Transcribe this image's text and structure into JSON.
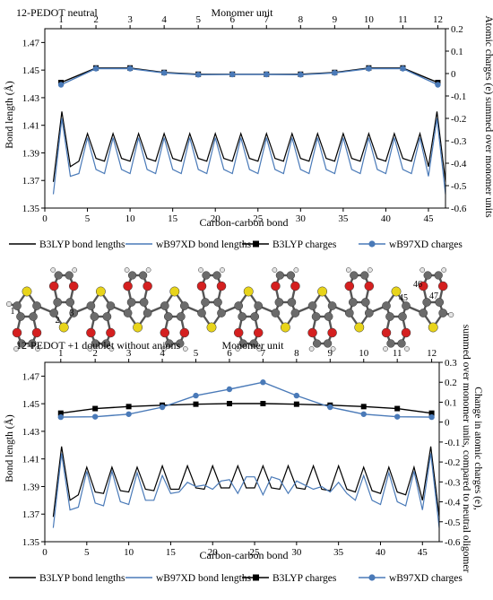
{
  "chart_data": [
    {
      "type": "line",
      "title": "12-PEDOT neutral",
      "x2label": "Monomer unit",
      "xlabel": "Carbon-carbon bond",
      "ylabel": "Bond length (Å)",
      "y2label": "Atomic charges (e) summed over monomer units",
      "xlim": [
        0,
        47
      ],
      "ylim": [
        1.35,
        1.48
      ],
      "y2lim": [
        -0.6,
        0.2
      ],
      "x_ticks": [
        0,
        5,
        10,
        15,
        20,
        25,
        30,
        35,
        40,
        45
      ],
      "y_ticks": [
        1.35,
        1.37,
        1.39,
        1.41,
        1.43,
        1.45,
        1.47
      ],
      "y_tick_labels": [
        "1.35",
        "1.37",
        "1.39",
        "1.41",
        "1.43",
        "1.45",
        "1.47"
      ],
      "y2_ticks": [
        -0.6,
        -0.5,
        -0.4,
        -0.3,
        -0.2,
        -0.1,
        0,
        0.1,
        0.2
      ],
      "y2_tick_labels": [
        "-0.6",
        "-0.5",
        "-0.4",
        "-0.3",
        "-0.2",
        "-0.1",
        "0",
        "0.1",
        "0.2"
      ],
      "monomer_ticks": [
        1,
        2,
        3,
        4,
        5,
        6,
        7,
        8,
        9,
        10,
        11,
        12
      ],
      "monomer_x": [
        1.9,
        6,
        10,
        14,
        18,
        22,
        26,
        30,
        34,
        38,
        42,
        46.1
      ],
      "series": [
        {
          "name": "B3LYP bond lengths",
          "axis": "left",
          "color": "#000000",
          "x": [
            1,
            2,
            3,
            4,
            5,
            6,
            7,
            8,
            9,
            10,
            11,
            12,
            13,
            14,
            15,
            16,
            17,
            18,
            19,
            20,
            21,
            22,
            23,
            24,
            25,
            26,
            27,
            28,
            29,
            30,
            31,
            32,
            33,
            34,
            35,
            36,
            37,
            38,
            39,
            40,
            41,
            42,
            43,
            44,
            45,
            46,
            47
          ],
          "values": [
            1.369,
            1.42,
            1.38,
            1.384,
            1.404,
            1.386,
            1.384,
            1.404,
            1.386,
            1.384,
            1.404,
            1.386,
            1.384,
            1.404,
            1.386,
            1.384,
            1.404,
            1.386,
            1.384,
            1.404,
            1.386,
            1.384,
            1.404,
            1.386,
            1.384,
            1.404,
            1.386,
            1.384,
            1.404,
            1.386,
            1.384,
            1.404,
            1.386,
            1.384,
            1.404,
            1.386,
            1.384,
            1.404,
            1.386,
            1.384,
            1.404,
            1.386,
            1.384,
            1.404,
            1.38,
            1.42,
            1.369
          ]
        },
        {
          "name": "wB97XD bond lengths",
          "axis": "left",
          "color": "#4a7ab8",
          "x": [
            1,
            2,
            3,
            4,
            5,
            6,
            7,
            8,
            9,
            10,
            11,
            12,
            13,
            14,
            15,
            16,
            17,
            18,
            19,
            20,
            21,
            22,
            23,
            24,
            25,
            26,
            27,
            28,
            29,
            30,
            31,
            32,
            33,
            34,
            35,
            36,
            37,
            38,
            39,
            40,
            41,
            42,
            43,
            44,
            45,
            46,
            47
          ],
          "values": [
            1.36,
            1.415,
            1.373,
            1.375,
            1.401,
            1.378,
            1.375,
            1.401,
            1.378,
            1.375,
            1.401,
            1.378,
            1.375,
            1.401,
            1.378,
            1.375,
            1.401,
            1.378,
            1.375,
            1.401,
            1.378,
            1.375,
            1.401,
            1.378,
            1.375,
            1.401,
            1.378,
            1.375,
            1.401,
            1.378,
            1.375,
            1.401,
            1.378,
            1.375,
            1.401,
            1.378,
            1.375,
            1.401,
            1.378,
            1.375,
            1.401,
            1.378,
            1.375,
            1.401,
            1.373,
            1.415,
            1.36
          ]
        },
        {
          "name": "B3LYP charges",
          "axis": "right",
          "color": "#000000",
          "marker": "square",
          "x": [
            1.9,
            6,
            10,
            14,
            18,
            22,
            26,
            30,
            34,
            38,
            42,
            46.1
          ],
          "values": [
            -0.04,
            0.025,
            0.025,
            0.005,
            -0.003,
            -0.003,
            -0.003,
            -0.003,
            0.005,
            0.025,
            0.025,
            -0.04
          ]
        },
        {
          "name": "wB97XD charges",
          "axis": "right",
          "color": "#4a7ab8",
          "marker": "circle",
          "x": [
            1.9,
            6,
            10,
            14,
            18,
            22,
            26,
            30,
            34,
            38,
            42,
            46.1
          ],
          "values": [
            -0.05,
            0.022,
            0.022,
            0.003,
            -0.005,
            -0.004,
            -0.004,
            -0.005,
            0.003,
            0.022,
            0.022,
            -0.05
          ]
        }
      ]
    },
    {
      "type": "line",
      "title": "12-PEDOT +1 doublet without anions",
      "x2label": "Monomer unit",
      "xlabel": "Carbon-carbon bond",
      "ylabel": "Bond length (Å)",
      "y2label": "Change in atomic charges (e), summed over monomer units, compared to neutral oligomer",
      "xlim": [
        0,
        47
      ],
      "ylim": [
        1.35,
        1.48
      ],
      "y2lim": [
        -0.6,
        0.3
      ],
      "x_ticks": [
        0,
        5,
        10,
        15,
        20,
        25,
        30,
        35,
        40,
        45
      ],
      "y_ticks": [
        1.35,
        1.37,
        1.39,
        1.41,
        1.43,
        1.45,
        1.47
      ],
      "y_tick_labels": [
        "1.35",
        "1.37",
        "1.39",
        "1.41",
        "1.43",
        "1.45",
        "1.47"
      ],
      "y2_ticks": [
        -0.6,
        -0.5,
        -0.4,
        -0.3,
        -0.2,
        -0.1,
        0,
        0.1,
        0.2,
        0.3
      ],
      "y2_tick_labels": [
        "-0.6",
        "-0.5",
        "-0.4",
        "-0.3",
        "-0.2",
        "-0.1",
        "0",
        "0.1",
        "0.2",
        "0.3"
      ],
      "monomer_ticks": [
        1,
        2,
        3,
        4,
        5,
        6,
        7,
        8,
        9,
        10,
        11,
        12
      ],
      "monomer_x": [
        1.9,
        6,
        10,
        14,
        18,
        22,
        26,
        30,
        34,
        38,
        42,
        46.1
      ],
      "series": [
        {
          "name": "B3LYP bond lengths",
          "axis": "left",
          "color": "#000000",
          "x": [
            1,
            2,
            3,
            4,
            5,
            6,
            7,
            8,
            9,
            10,
            11,
            12,
            13,
            14,
            15,
            16,
            17,
            18,
            19,
            20,
            21,
            22,
            23,
            24,
            25,
            26,
            27,
            28,
            29,
            30,
            31,
            32,
            33,
            34,
            35,
            36,
            37,
            38,
            39,
            40,
            41,
            42,
            43,
            44,
            45,
            46,
            47
          ],
          "values": [
            1.368,
            1.419,
            1.38,
            1.384,
            1.404,
            1.386,
            1.385,
            1.404,
            1.387,
            1.386,
            1.404,
            1.388,
            1.387,
            1.405,
            1.388,
            1.388,
            1.405,
            1.389,
            1.388,
            1.405,
            1.389,
            1.389,
            1.405,
            1.389,
            1.389,
            1.405,
            1.389,
            1.388,
            1.405,
            1.389,
            1.388,
            1.405,
            1.388,
            1.387,
            1.405,
            1.388,
            1.386,
            1.404,
            1.387,
            1.385,
            1.404,
            1.386,
            1.384,
            1.404,
            1.38,
            1.419,
            1.368
          ]
        },
        {
          "name": "wB97XD bond lengths",
          "axis": "left",
          "color": "#4a7ab8",
          "x": [
            1,
            2,
            3,
            4,
            5,
            6,
            7,
            8,
            9,
            10,
            11,
            12,
            13,
            14,
            15,
            16,
            17,
            18,
            19,
            20,
            21,
            22,
            23,
            24,
            25,
            26,
            27,
            28,
            29,
            30,
            31,
            32,
            33,
            34,
            35,
            36,
            37,
            38,
            39,
            40,
            41,
            42,
            43,
            44,
            45,
            46,
            47
          ],
          "values": [
            1.36,
            1.414,
            1.373,
            1.375,
            1.401,
            1.378,
            1.376,
            1.401,
            1.379,
            1.377,
            1.4,
            1.38,
            1.38,
            1.398,
            1.385,
            1.386,
            1.393,
            1.39,
            1.391,
            1.388,
            1.394,
            1.395,
            1.385,
            1.397,
            1.397,
            1.384,
            1.397,
            1.395,
            1.385,
            1.394,
            1.391,
            1.388,
            1.39,
            1.386,
            1.393,
            1.385,
            1.38,
            1.398,
            1.38,
            1.377,
            1.4,
            1.379,
            1.376,
            1.401,
            1.373,
            1.414,
            1.36
          ]
        },
        {
          "name": "B3LYP charges",
          "axis": "right",
          "color": "#000000",
          "marker": "square",
          "x": [
            1.9,
            6,
            10,
            14,
            18,
            22,
            26,
            30,
            34,
            38,
            42,
            46.1
          ],
          "values": [
            0.045,
            0.068,
            0.078,
            0.085,
            0.09,
            0.093,
            0.093,
            0.09,
            0.085,
            0.078,
            0.068,
            0.045
          ]
        },
        {
          "name": "wB97XD charges",
          "axis": "right",
          "color": "#4a7ab8",
          "marker": "circle",
          "x": [
            1.9,
            6,
            10,
            14,
            18,
            22,
            26,
            30,
            34,
            38,
            42,
            46.1
          ],
          "values": [
            0.025,
            0.027,
            0.04,
            0.075,
            0.133,
            0.165,
            0.2,
            0.133,
            0.075,
            0.04,
            0.027,
            0.025
          ]
        }
      ]
    }
  ],
  "legend": {
    "items": [
      {
        "label": "B3LYP bond lengths",
        "color": "#000000",
        "marker": "none"
      },
      {
        "label": "wB97XD bond lengths",
        "color": "#4a7ab8",
        "marker": "none"
      },
      {
        "label": "B3LYP charges",
        "color": "#000000",
        "marker": "square"
      },
      {
        "label": "wB97XD charges",
        "color": "#4a7ab8",
        "marker": "circle"
      }
    ]
  },
  "molecule": {
    "atom_labels": [
      "1",
      "2",
      "3",
      "45",
      "46",
      "47"
    ],
    "colors": {
      "carbon": "#6b6b6b",
      "oxygen": "#d42020",
      "sulfur": "#e8d41a",
      "hydrogen": "#e4e4e4"
    }
  }
}
